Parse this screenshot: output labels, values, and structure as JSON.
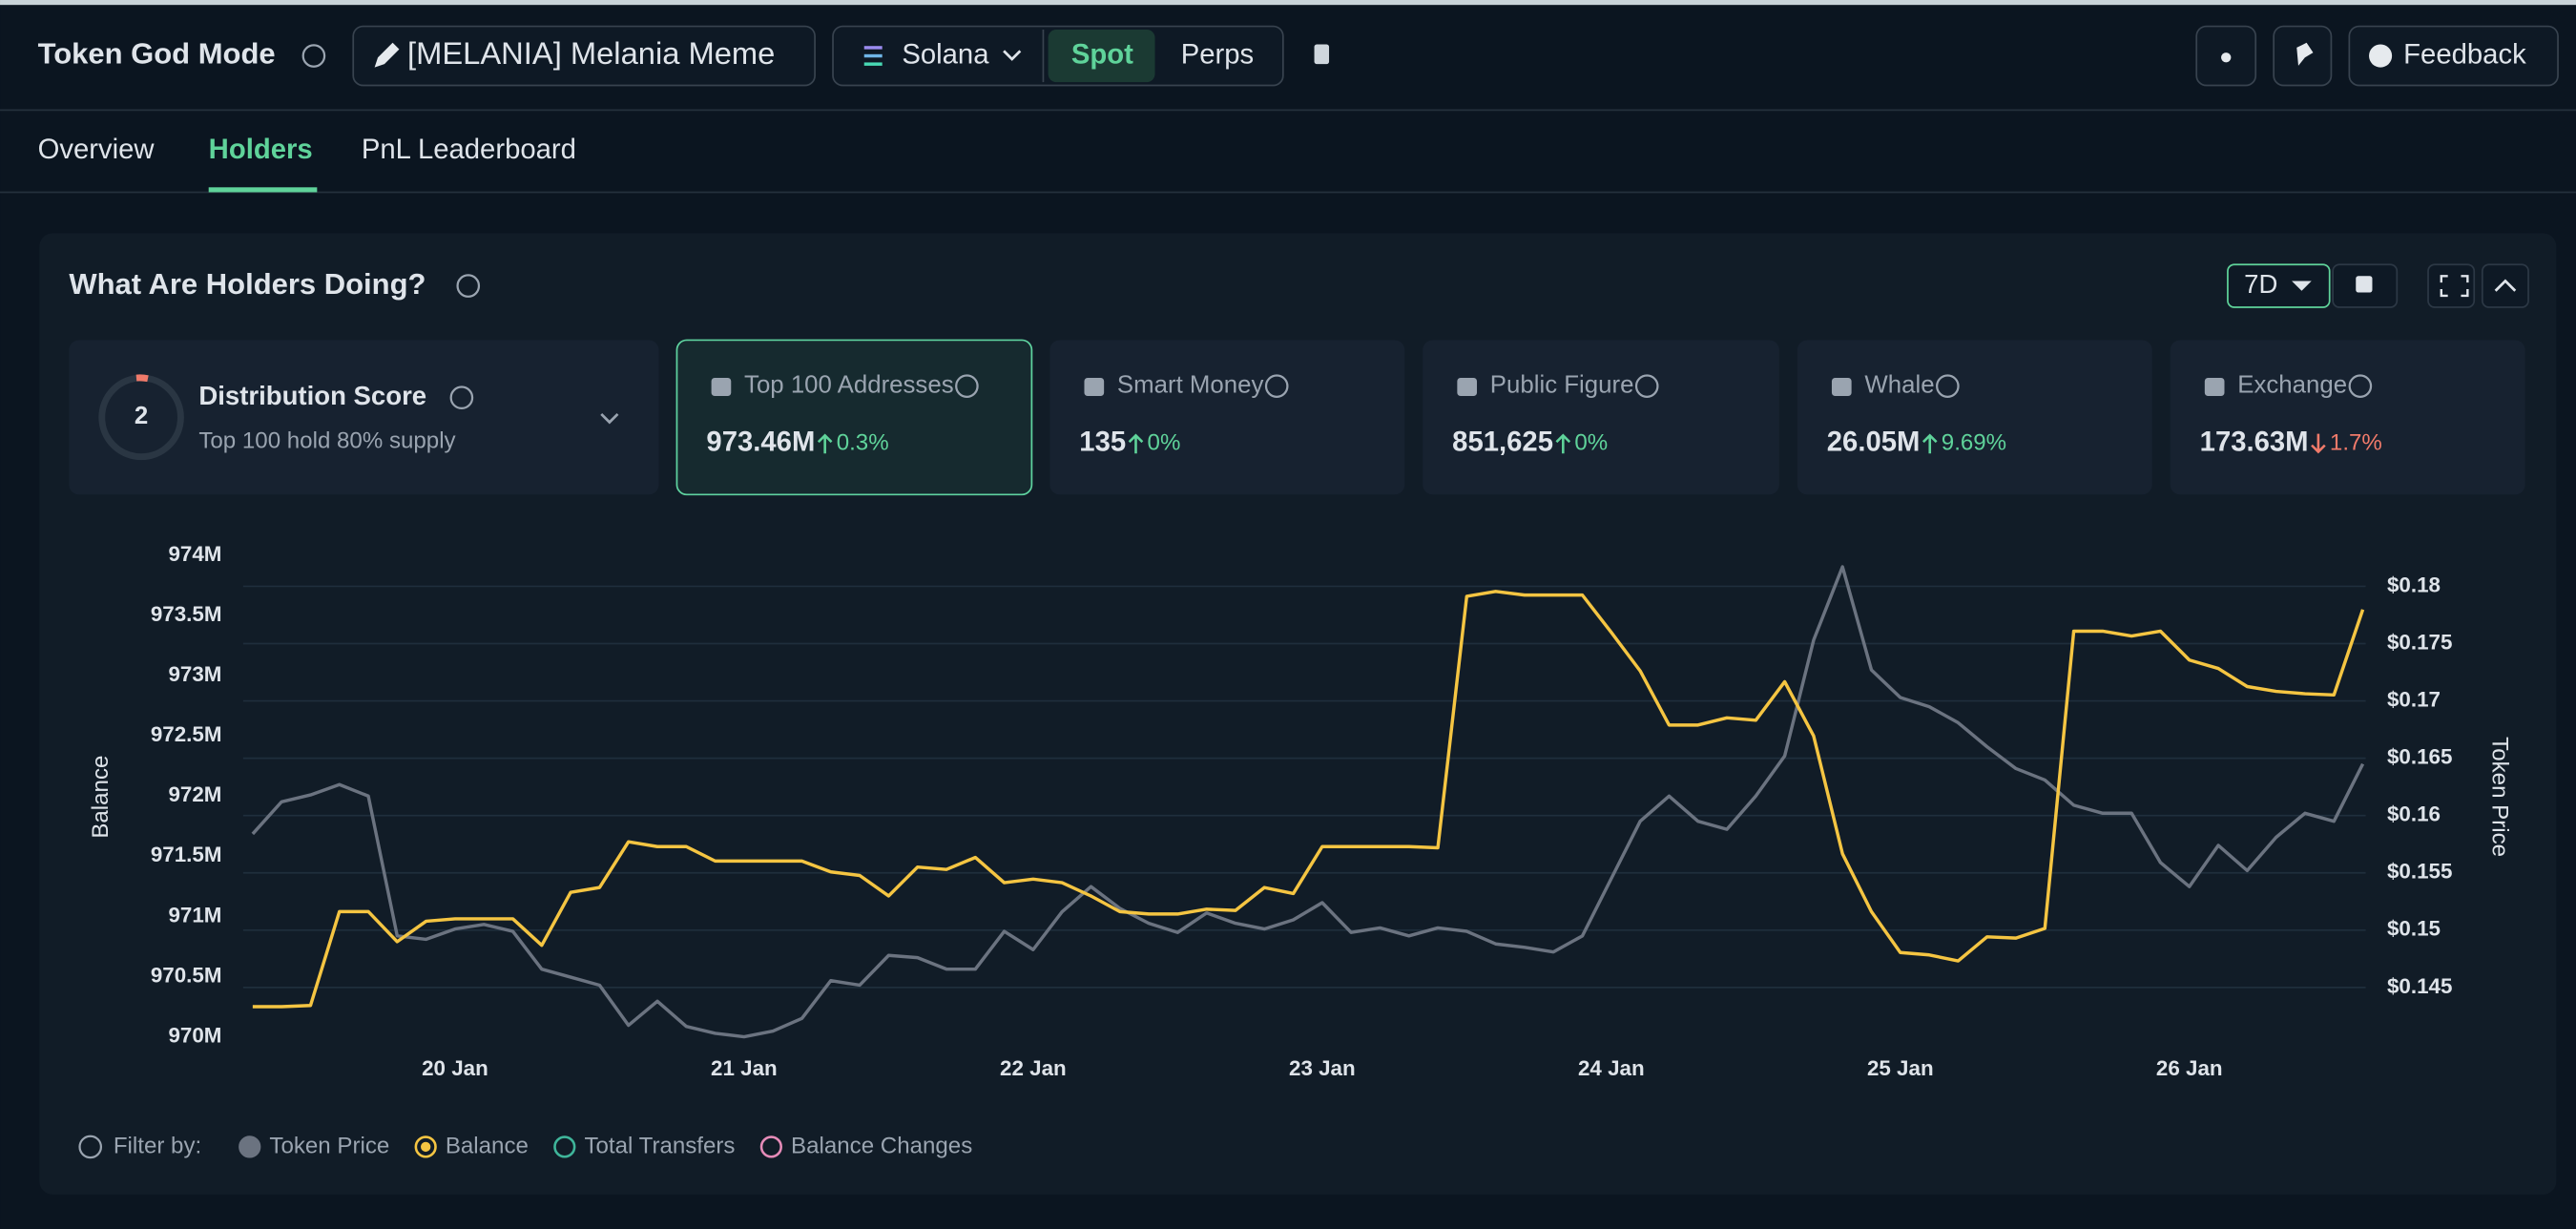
{
  "header": {
    "title": "Token God Mode",
    "token": "[MELANIA] Melania Meme",
    "chain": "Solana",
    "modes": [
      "Spot",
      "Perps"
    ],
    "feedback": "Feedback"
  },
  "tabs": [
    "Overview",
    "Holders",
    "PnL Leaderboard"
  ],
  "panel": {
    "title": "What Are Holders Doing?",
    "period": "7D",
    "distribution": {
      "score": "2",
      "title": "Distribution Score",
      "subtitle": "Top 100 hold 80% supply"
    },
    "cards": [
      {
        "name": "Top 100 Addresses",
        "value": "973.46M",
        "change": "0.3%",
        "direction": "up"
      },
      {
        "name": "Smart Money",
        "value": "135",
        "change": "0%",
        "direction": "up"
      },
      {
        "name": "Public Figure",
        "value": "851,625",
        "change": "0%",
        "direction": "up"
      },
      {
        "name": "Whale",
        "value": "26.05M",
        "change": "9.69%",
        "direction": "up"
      },
      {
        "name": "Exchange",
        "value": "173.63M",
        "change": "1.7%",
        "direction": "down"
      }
    ],
    "filter_label": "Filter by:"
  },
  "chart_data": {
    "type": "line",
    "ylabel": "Balance",
    "y2label": "Token Price",
    "x": [
      19.3,
      19.4,
      19.5,
      19.6,
      19.7,
      19.8,
      19.9,
      20.0,
      20.1,
      20.2,
      20.3,
      20.4,
      20.5,
      20.6,
      20.7,
      20.8,
      20.9,
      21.0,
      21.1,
      21.2,
      21.3,
      21.4,
      21.5,
      21.6,
      21.7,
      21.8,
      21.9,
      22.0,
      22.1,
      22.2,
      22.3,
      22.4,
      22.5,
      22.6,
      22.7,
      22.8,
      22.9,
      23.0,
      23.1,
      23.2,
      23.3,
      23.4,
      23.5,
      23.6,
      23.7,
      23.8,
      23.9,
      24.0,
      24.1,
      24.2,
      24.3,
      24.4,
      24.5,
      24.6,
      24.7,
      24.8,
      24.9,
      25.0,
      25.1,
      25.2,
      25.3,
      25.4,
      25.5,
      25.6,
      25.7,
      25.8,
      25.9,
      26.0,
      26.1,
      26.2,
      26.3,
      26.4,
      26.5,
      26.6
    ],
    "series": [
      {
        "name": "Token Price",
        "color": "#6b7380",
        "axis": "y2",
        "values": [
          0.1584,
          0.1612,
          0.1618,
          0.1627,
          0.1617,
          0.1495,
          0.1492,
          0.1501,
          0.1505,
          0.1499,
          0.1466,
          0.1459,
          0.1452,
          0.1417,
          0.1438,
          0.1416,
          0.141,
          0.1407,
          0.1412,
          0.1423,
          0.1456,
          0.1452,
          0.1478,
          0.1476,
          0.1466,
          0.1466,
          0.1499,
          0.1483,
          0.1516,
          0.1538,
          0.1519,
          0.1506,
          0.1498,
          0.1515,
          0.1506,
          0.1501,
          0.1509,
          0.1524,
          0.1498,
          0.1502,
          0.1495,
          0.1502,
          0.1499,
          0.1488,
          0.1485,
          0.1481,
          0.1495,
          0.1545,
          0.1595,
          0.1617,
          0.1595,
          0.1588,
          0.1617,
          0.1652,
          0.1753,
          0.1817,
          0.1727,
          0.1703,
          0.1695,
          0.1681,
          0.166,
          0.1641,
          0.1631,
          0.1609,
          0.1602,
          0.1602,
          0.1559,
          0.1538,
          0.1574,
          0.1552,
          0.1581,
          0.1602,
          0.1595,
          0.1645
        ]
      },
      {
        "name": "Balance",
        "color": "#f5c542",
        "values": [
          970.25,
          970.25,
          970.26,
          971.04,
          971.04,
          970.79,
          970.96,
          970.98,
          970.98,
          970.98,
          970.76,
          971.2,
          971.24,
          971.62,
          971.58,
          971.58,
          971.46,
          971.46,
          971.46,
          971.46,
          971.37,
          971.34,
          971.17,
          971.41,
          971.39,
          971.49,
          971.28,
          971.31,
          971.28,
          971.17,
          971.04,
          971.02,
          971.02,
          971.06,
          971.05,
          971.24,
          971.19,
          971.58,
          971.58,
          971.58,
          971.58,
          971.57,
          973.66,
          973.7,
          973.67,
          973.67,
          973.67,
          973.36,
          973.04,
          972.59,
          972.59,
          972.65,
          972.63,
          972.95,
          972.5,
          971.52,
          971.04,
          970.7,
          970.68,
          970.63,
          970.83,
          970.82,
          970.9,
          973.37,
          973.37,
          973.33,
          973.37,
          973.13,
          973.06,
          972.91,
          972.87,
          972.85,
          972.84,
          973.55
        ]
      }
    ],
    "extra_legend": [
      {
        "name": "Total Transfers",
        "color": "#3fb59a"
      },
      {
        "name": "Balance Changes",
        "color": "#e58bb8"
      }
    ],
    "xlim": [
      19.267,
      26.61
    ],
    "xticks": [
      {
        "value": 20,
        "label": "20 Jan"
      },
      {
        "value": 21,
        "label": "21 Jan"
      },
      {
        "value": 22,
        "label": "22 Jan"
      },
      {
        "value": 23,
        "label": "23 Jan"
      },
      {
        "value": 24,
        "label": "24 Jan"
      },
      {
        "value": 25,
        "label": "25 Jan"
      },
      {
        "value": 26,
        "label": "26 Jan"
      }
    ],
    "ylim": [
      970,
      974
    ],
    "yticks": [
      {
        "value": 974,
        "label": "974M"
      },
      {
        "value": 973.5,
        "label": "973.5M"
      },
      {
        "value": 973,
        "label": "973M"
      },
      {
        "value": 972.5,
        "label": "972.5M"
      },
      {
        "value": 972,
        "label": "972M"
      },
      {
        "value": 971.5,
        "label": "971.5M"
      },
      {
        "value": 971,
        "label": "971M"
      },
      {
        "value": 970.5,
        "label": "970.5M"
      },
      {
        "value": 970,
        "label": "970M"
      }
    ],
    "y2lim": [
      0.1407,
      0.1827
    ],
    "y2ticks": [
      {
        "value": 0.18,
        "label": "$0.18"
      },
      {
        "value": 0.175,
        "label": "$0.175"
      },
      {
        "value": 0.17,
        "label": "$0.17"
      },
      {
        "value": 0.165,
        "label": "$0.165"
      },
      {
        "value": 0.16,
        "label": "$0.16"
      },
      {
        "value": 0.155,
        "label": "$0.155"
      },
      {
        "value": 0.15,
        "label": "$0.15"
      },
      {
        "value": 0.145,
        "label": "$0.145"
      }
    ],
    "grid": true
  }
}
